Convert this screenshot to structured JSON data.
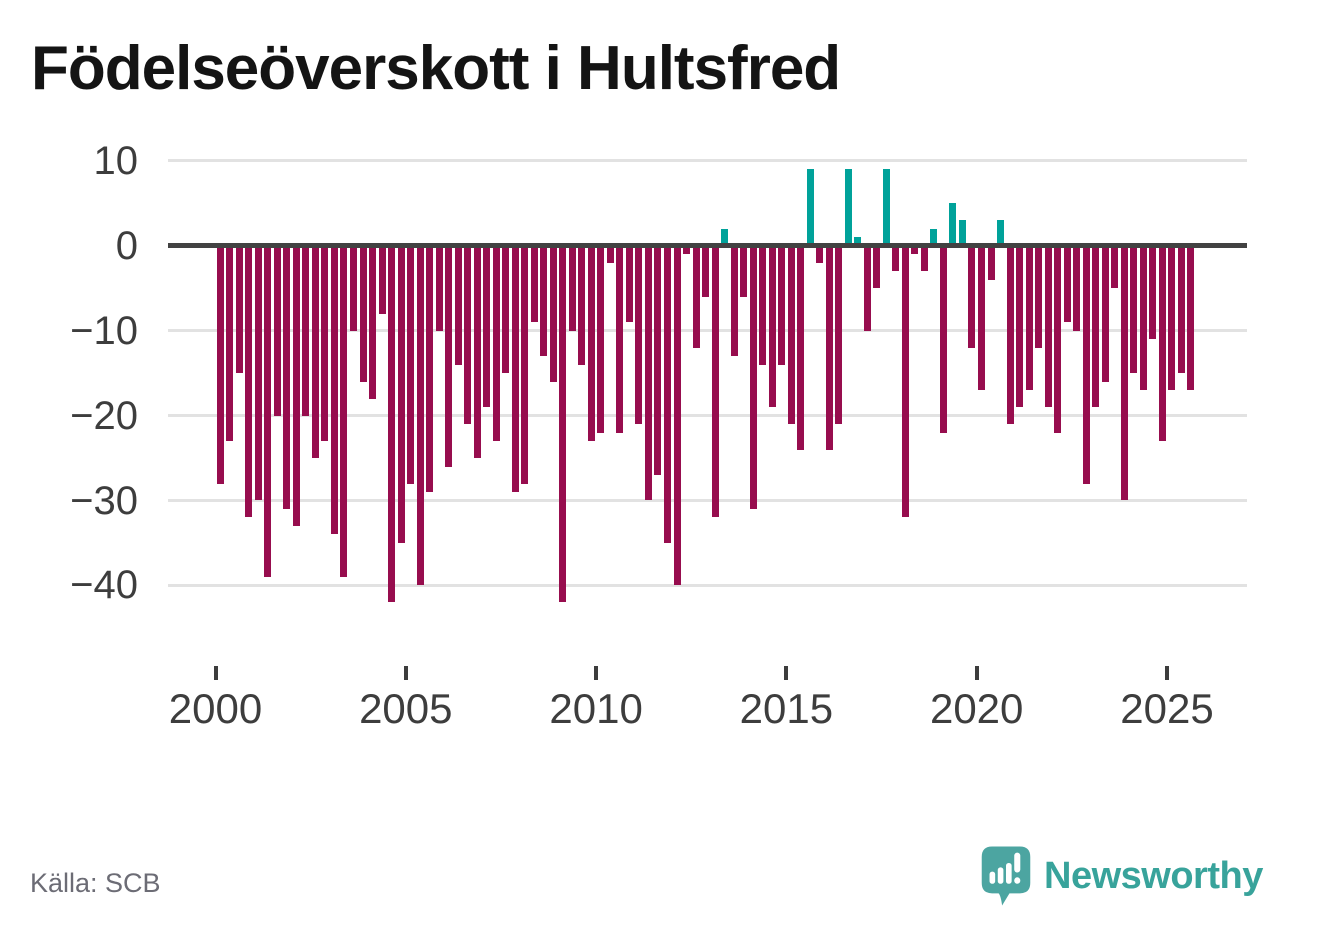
{
  "title": "Födelseöverskott i Hultsfred",
  "source": "Källa: SCB",
  "branding": {
    "name": "Newsworthy",
    "icon": "newsworthy-bubble-chart-icon"
  },
  "colors": {
    "positive": "#00A29A",
    "negative": "#970D4E",
    "axis_line": "#424242",
    "gridline": "#E2E2E2",
    "tick_label": "#3D3D3D",
    "title": "#141414",
    "source": "#6C6C75",
    "brand_text": "#38A39B",
    "brand_bubble": "#4CA5A1"
  },
  "chart_data": {
    "type": "bar",
    "title": "Födelseöverskott i Hultsfred",
    "interval": "quarter",
    "start": "2000-Q1",
    "end": "2025-Q3",
    "x_tick_years": [
      2000,
      2005,
      2010,
      2015,
      2020,
      2025
    ],
    "y_ticks": [
      10,
      0,
      -10,
      -20,
      -30,
      -40
    ],
    "ylim": [
      -45,
      12
    ],
    "grid": true,
    "legend": false,
    "values": [
      -28,
      -23,
      -15,
      -32,
      -30,
      -39,
      -20,
      -31,
      -33,
      -20,
      -25,
      -23,
      -34,
      -39,
      -10,
      -16,
      -18,
      -8,
      -42,
      -35,
      -28,
      -40,
      -29,
      -10,
      -26,
      -14,
      -21,
      -25,
      -19,
      -23,
      -15,
      -29,
      -28,
      -9,
      -13,
      -16,
      -42,
      -10,
      -14,
      -23,
      -22,
      -2,
      -22,
      -9,
      -21,
      -30,
      -27,
      -35,
      -40,
      -1,
      -12,
      -6,
      -32,
      2,
      -13,
      -6,
      -31,
      -14,
      -19,
      -14,
      -21,
      -24,
      9,
      -2,
      -24,
      -21,
      9,
      1,
      -10,
      -5,
      9,
      -3,
      -32,
      -1,
      -3,
      2,
      -22,
      5,
      3,
      -12,
      -17,
      -4,
      3,
      -21,
      -19,
      -17,
      -12,
      -19,
      -22,
      -9,
      -10,
      -28,
      -19,
      -16,
      -5,
      -30,
      -15,
      -17,
      -11,
      -23,
      -17,
      -15,
      -17
    ]
  }
}
